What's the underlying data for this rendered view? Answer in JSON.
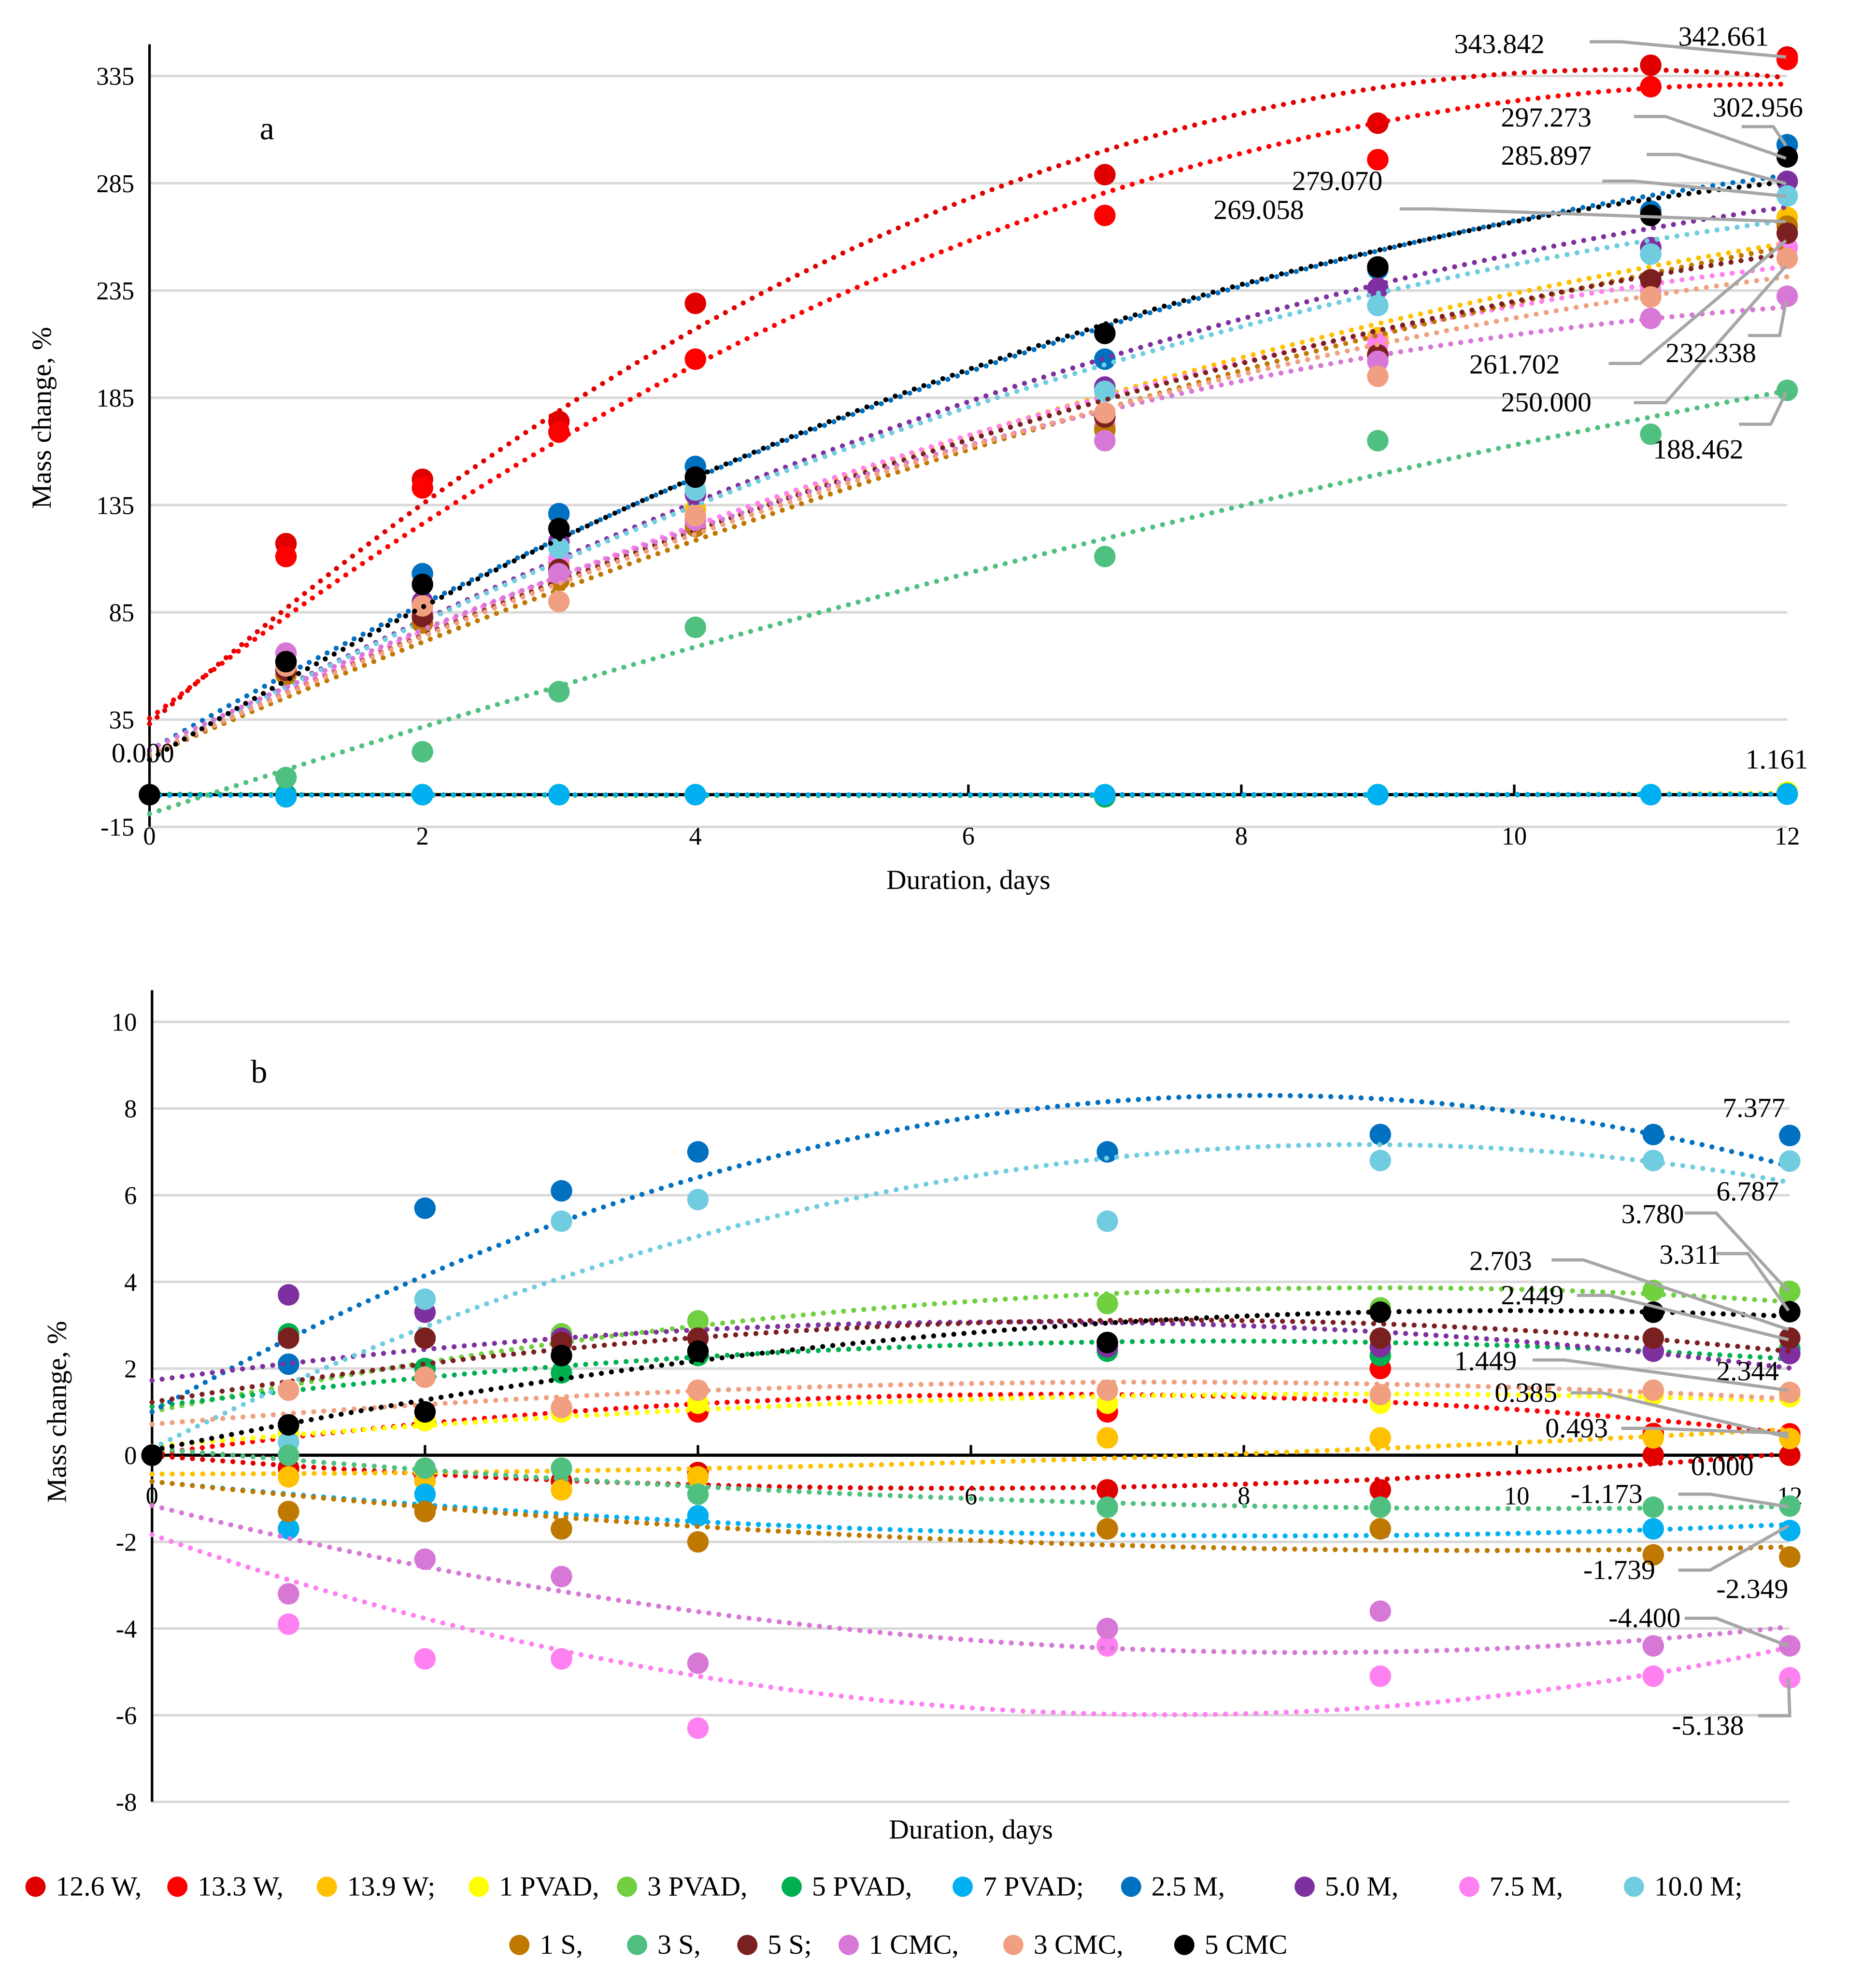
{
  "legend": [
    {
      "name": "12.6 W,",
      "color": "#E00000"
    },
    {
      "name": "13.3 W,",
      "color": "#FF0000"
    },
    {
      "name": "13.9 W;",
      "color": "#FFC000"
    },
    {
      "name": "1 PVAD,",
      "color": "#FFFF00"
    },
    {
      "name": "3 PVAD,",
      "color": "#70D040"
    },
    {
      "name": "5 PVAD,",
      "color": "#00B050"
    },
    {
      "name": "7 PVAD;",
      "color": "#00B0F0"
    },
    {
      "name": "2.5 M,",
      "color": "#0070C0"
    },
    {
      "name": "5.0 M,",
      "color": "#7F30A0"
    },
    {
      "name": "7.5 M,",
      "color": "#FF80F0"
    },
    {
      "name": "10.0 M;",
      "color": "#70CDE0"
    },
    {
      "name": "1 S,",
      "color": "#BF7800"
    },
    {
      "name": "3 S,",
      "color": "#50C080"
    },
    {
      "name": "5 S;",
      "color": "#7B2020"
    },
    {
      "name": "1 CMC,",
      "color": "#D778D7"
    },
    {
      "name": "3 CMC,",
      "color": "#F0A080"
    },
    {
      "name": "5 CMC",
      "color": "#000000"
    }
  ],
  "chart_data": [
    {
      "type": "scatter",
      "panel": "a",
      "xlabel": "Duration, days",
      "ylabel": "Mass change, %",
      "xlim": [
        0,
        12
      ],
      "ylim": [
        -15,
        335
      ],
      "xticks": [
        "0",
        "2",
        "4",
        "6",
        "8",
        "10",
        "12"
      ],
      "yticks": [
        "-15",
        "35",
        "85",
        "135",
        "185",
        "235",
        "285",
        "335"
      ],
      "ytick_values": [
        -15,
        35,
        85,
        135,
        185,
        235,
        285,
        335
      ],
      "grid": true,
      "trendline": "polynomial order 2, dotted",
      "x": [
        0,
        1,
        2,
        3,
        4,
        7,
        9,
        11,
        12
      ],
      "series": [
        {
          "name": "12.6 W",
          "values": [
            0,
            117,
            147,
            174,
            229,
            289,
            313,
            340,
            343.842
          ]
        },
        {
          "name": "13.3 W",
          "values": [
            0,
            111,
            143,
            169,
            203,
            270,
            296,
            330,
            342.661
          ]
        },
        {
          "name": "13.9 W",
          "values": [
            0,
            58,
            82,
            108,
            133,
            172,
            213,
            240,
            269.058
          ]
        },
        {
          "name": "1 PVAD",
          "values": [
            0,
            -1,
            0,
            0,
            0,
            -1,
            0,
            0,
            1.161
          ]
        },
        {
          "name": "3 PVAD",
          "values": [
            0,
            0,
            0,
            0,
            0,
            0,
            0,
            0,
            0.5
          ]
        },
        {
          "name": "5 PVAD",
          "values": [
            0,
            0,
            0,
            0,
            0,
            -1,
            0,
            0,
            0.3
          ]
        },
        {
          "name": "7 PVAD",
          "values": [
            0,
            -1,
            0,
            0,
            0,
            0,
            0,
            0,
            0.2
          ]
        },
        {
          "name": "2.5 M",
          "values": [
            0,
            62,
            103,
            131,
            153,
            203,
            245,
            272,
            302.956
          ]
        },
        {
          "name": "5.0 M",
          "values": [
            0,
            60,
            90,
            118,
            140,
            190,
            236,
            255,
            285.897
          ]
        },
        {
          "name": "7.5 M",
          "values": [
            0,
            58,
            85,
            110,
            130,
            172,
            210,
            235,
            255
          ]
        },
        {
          "name": "10.0 M",
          "values": [
            0,
            60,
            88,
            115,
            142,
            188,
            228,
            252,
            279.07
          ]
        },
        {
          "name": "1 S",
          "values": [
            0,
            56,
            80,
            100,
            125,
            170,
            205,
            240,
            265
          ]
        },
        {
          "name": "3 S",
          "values": [
            0,
            8,
            20,
            48,
            78,
            111,
            165,
            168,
            188.462
          ]
        },
        {
          "name": "5 S",
          "values": [
            0,
            58,
            83,
            105,
            128,
            176,
            205,
            240,
            261.702
          ]
        },
        {
          "name": "1 CMC",
          "values": [
            0,
            66,
            88,
            103,
            128,
            165,
            202,
            222,
            232.338
          ]
        },
        {
          "name": "3 CMC",
          "values": [
            0,
            60,
            88,
            90,
            130,
            178,
            195,
            232,
            250.0
          ]
        },
        {
          "name": "5 CMC",
          "values": [
            0,
            62,
            98,
            124,
            148,
            215,
            246,
            270,
            297.273
          ]
        }
      ],
      "annotations": [
        "343.842",
        "342.661",
        "302.956",
        "297.273",
        "285.897",
        "279.070",
        "269.058",
        "261.702",
        "250.000",
        "232.338",
        "188.462",
        "1.161",
        "0.000"
      ]
    },
    {
      "type": "scatter",
      "panel": "b",
      "xlabel": "Duration, days",
      "ylabel": "Mass change, %",
      "xlim": [
        0,
        12
      ],
      "ylim": [
        -8,
        10
      ],
      "xticks": [
        "0",
        "2",
        "4",
        "6",
        "8",
        "10",
        "12"
      ],
      "yticks": [
        "-8",
        "-6",
        "-4",
        "-2",
        "0",
        "2",
        "4",
        "6",
        "8",
        "10"
      ],
      "ytick_values": [
        -8,
        -6,
        -4,
        -2,
        0,
        2,
        4,
        6,
        8,
        10
      ],
      "grid": true,
      "trendline": "polynomial order 2, dotted",
      "x": [
        0,
        1,
        2,
        3,
        4,
        7,
        9,
        11,
        12
      ],
      "series": [
        {
          "name": "12.6 W",
          "values": [
            0,
            -0.3,
            -0.5,
            -0.6,
            -0.4,
            -0.8,
            -0.8,
            0,
            0.0
          ]
        },
        {
          "name": "13.3 W",
          "values": [
            0,
            0.5,
            0.8,
            1.0,
            1.0,
            1.0,
            2.0,
            0.5,
            0.493
          ]
        },
        {
          "name": "13.9 W",
          "values": [
            0,
            -0.5,
            -0.6,
            -0.8,
            -0.5,
            0.4,
            0.4,
            0.4,
            0.385
          ]
        },
        {
          "name": "1 PVAD",
          "values": [
            0,
            0.5,
            0.8,
            1.0,
            1.2,
            1.2,
            1.2,
            1.4,
            1.35
          ]
        },
        {
          "name": "3 PVAD",
          "values": [
            0,
            2.8,
            2.0,
            2.8,
            3.1,
            3.5,
            3.4,
            3.8,
            3.78
          ]
        },
        {
          "name": "5 PVAD",
          "values": [
            0,
            2.8,
            2.0,
            1.9,
            2.3,
            2.4,
            2.3,
            2.4,
            2.449
          ]
        },
        {
          "name": "7 PVAD",
          "values": [
            0,
            -1.7,
            -0.9,
            -1.7,
            -1.4,
            -1.7,
            -1.7,
            -1.7,
            -1.739
          ]
        },
        {
          "name": "2.5 M",
          "values": [
            0,
            2.1,
            5.7,
            6.1,
            7.0,
            7.0,
            7.4,
            7.4,
            7.377
          ]
        },
        {
          "name": "5.0 M",
          "values": [
            0,
            3.7,
            3.3,
            2.7,
            2.7,
            2.5,
            2.5,
            2.4,
            2.344
          ]
        },
        {
          "name": "7.5 M",
          "values": [
            0,
            -3.9,
            -4.7,
            -4.7,
            -6.3,
            -4.4,
            -5.1,
            -5.1,
            -5.138
          ]
        },
        {
          "name": "10.0 M",
          "values": [
            0,
            0.3,
            3.6,
            5.4,
            5.9,
            5.4,
            6.8,
            6.8,
            6.787
          ]
        },
        {
          "name": "1 S",
          "values": [
            0,
            -1.3,
            -1.3,
            -1.7,
            -2.0,
            -1.7,
            -1.7,
            -2.3,
            -2.349
          ]
        },
        {
          "name": "3 S",
          "values": [
            0,
            0,
            -0.3,
            -0.3,
            -0.9,
            -1.2,
            -1.2,
            -1.2,
            -1.173
          ]
        },
        {
          "name": "5 S",
          "values": [
            0,
            2.7,
            2.7,
            2.6,
            2.7,
            2.6,
            2.7,
            2.7,
            2.703
          ]
        },
        {
          "name": "1 CMC",
          "values": [
            0,
            -3.2,
            -2.4,
            -2.8,
            -4.8,
            -4.0,
            -3.6,
            -4.4,
            -4.4
          ]
        },
        {
          "name": "3 CMC",
          "values": [
            0,
            1.5,
            1.8,
            1.1,
            1.5,
            1.5,
            1.4,
            1.5,
            1.449
          ]
        },
        {
          "name": "5 CMC",
          "values": [
            0,
            0.7,
            1.0,
            2.3,
            2.4,
            2.6,
            3.3,
            3.3,
            3.311
          ]
        }
      ],
      "annotations": [
        "7.377",
        "6.787",
        "3.780",
        "3.311",
        "2.703",
        "2.449",
        "2.344",
        "1.449",
        "0.385",
        "0.493",
        "0.000",
        "-1.173",
        "-1.739",
        "-2.349",
        "-4.400",
        "-5.138"
      ]
    }
  ]
}
